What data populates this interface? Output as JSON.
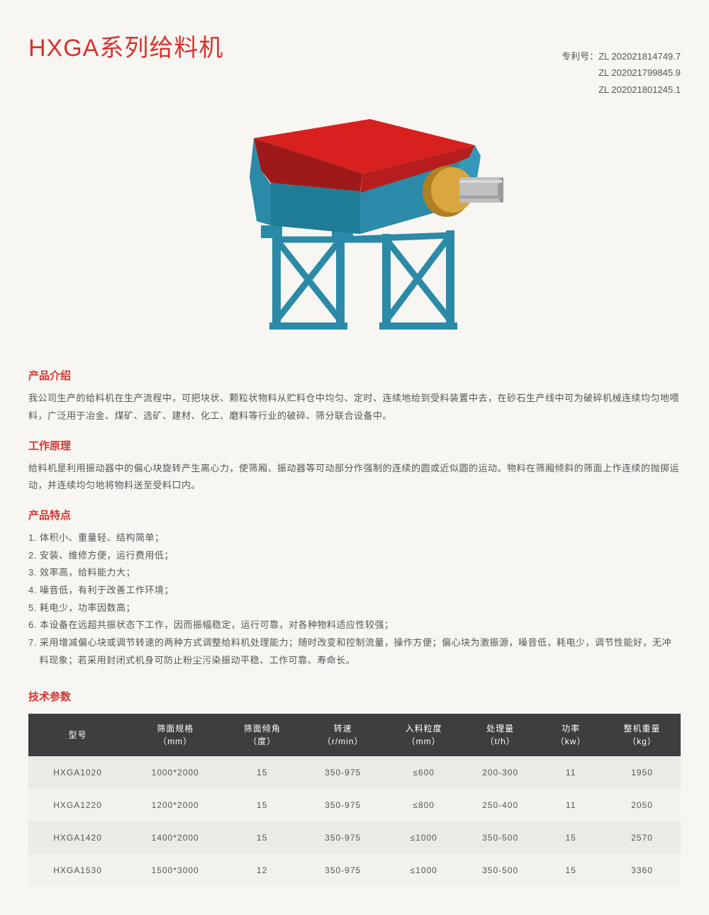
{
  "title": "HXGA系列给料机",
  "patents": {
    "label": "专利号：",
    "numbers": [
      "ZL 202021814749.7",
      "ZL 202021799845.9",
      "ZL 202021801245.1"
    ]
  },
  "illustration": {
    "frame_color": "#2b8aa8",
    "tray_top_color": "#d8201e",
    "tray_side_color": "#9e1a1a",
    "motor_housing_color": "#daa63f",
    "motor_shaft_color": "#b9b9b9"
  },
  "sections": {
    "intro": {
      "title": "产品介绍",
      "body": "我公司生产的给料机在生产流程中，可把块状、颗粒状物料从贮料仓中均匀、定时、连续地给到受料装置中去，在砂石生产线中可为破碎机械连续均匀地喂料，广泛用于冶金、煤矿、选矿、建材、化工、磨料等行业的破碎、筛分联合设备中。"
    },
    "principle": {
      "title": "工作原理",
      "body": "给料机是利用振动器中的偏心块旋转产生离心力，使筛厢、振动器等可动部分作强制的连续的圆或近似圆的运动。物料在筛厢倾斜的筛面上作连续的抛掷运动，并连续均匀地将物料送至受料口内。"
    },
    "features": {
      "title": "产品特点",
      "items": [
        "1. 体积小、重量轻、结构简单；",
        "2. 安装、维修方便，运行费用低；",
        "3. 效率高，给料能力大；",
        "4. 噪音低，有利于改善工作环境；",
        "5. 耗电少，功率因数高；",
        "6. 本设备在远超共振状态下工作，因而振幅稳定，运行可靠，对各种物料适应性较强；",
        "7. 采用增减偏心块或调节转速的两种方式调整给料机处理能力；随时改变和控制流量，操作方便；偏心块为激振源，噪音低，耗电少，调节性能好，无冲料现象；若采用封闭式机身可防止粉尘污染振动平稳、工作可靠、寿命长。"
      ]
    },
    "tech": {
      "title": "技术参数"
    }
  },
  "table": {
    "columns": [
      "型号",
      "筛面规格\n（mm）",
      "筛面倾角\n（度）",
      "转速\n（r/min）",
      "入料粒度\n（mm）",
      "处理量\n（t/h）",
      "功率\n（kw）",
      "整机重量\n（kg）"
    ],
    "rows": [
      [
        "HXGA1020",
        "1000*2000",
        "15",
        "350-975",
        "≤600",
        "200-300",
        "11",
        "1950"
      ],
      [
        "HXGA1220",
        "1200*2000",
        "15",
        "350-975",
        "≤800",
        "250-400",
        "11",
        "2050"
      ],
      [
        "HXGA1420",
        "1400*2000",
        "15",
        "350-975",
        "≤1000",
        "350-500",
        "15",
        "2570"
      ],
      [
        "HXGA1530",
        "1500*3000",
        "12",
        "350-975",
        "≤1000",
        "350-500",
        "15",
        "3360"
      ]
    ]
  }
}
